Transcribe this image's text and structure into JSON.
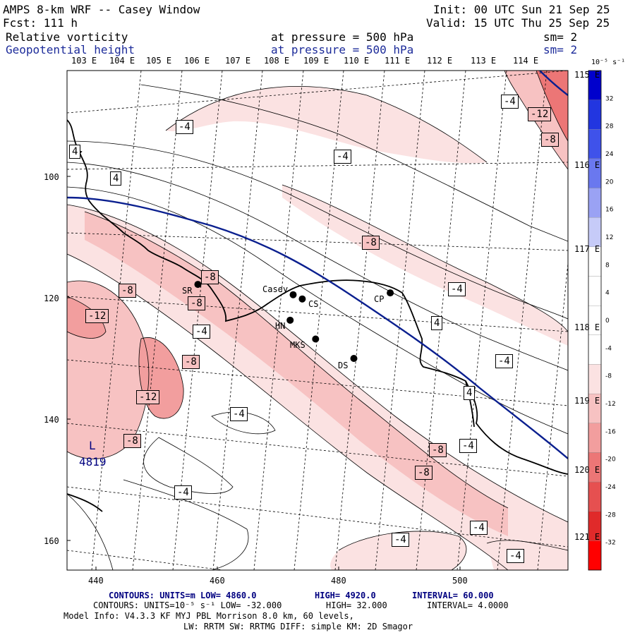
{
  "header": {
    "title": "AMPS 8-km WRF -- Casey Window",
    "init": "Init: 00 UTC Sun 21 Sep 25",
    "fcst": "Fcst:  111 h",
    "valid": "Valid: 15 UTC Thu 25 Sep 25",
    "field1": {
      "name": "Relative vorticity",
      "level": "at pressure =  500 hPa",
      "sm": "sm= 2"
    },
    "field2": {
      "name": "Geopotential height",
      "level": "at pressure =  500 hPa",
      "sm": "sm= 2"
    }
  },
  "lon_labels": [
    "103 E",
    "104 E",
    "105 E",
    "106 E",
    "107 E",
    "108 E",
    "109 E",
    "110 E",
    "111 E",
    "112 E",
    "113 E",
    "114 E"
  ],
  "right_lon_labels": [
    "115 E",
    "116 E",
    "117 E",
    "118 E",
    "119 E",
    "120 E",
    "121 E"
  ],
  "grid_x_labels": [
    "440",
    "460",
    "480",
    "500"
  ],
  "grid_y_labels": [
    "100",
    "120",
    "140",
    "160"
  ],
  "colorbar": {
    "unit": "10⁻⁵ s⁻¹",
    "ticks": [
      "32",
      "28",
      "24",
      "20",
      "16",
      "12",
      "8",
      "4",
      "0",
      "-4",
      "-8",
      "-12",
      "-16",
      "-20",
      "-24",
      "-28",
      "-32"
    ],
    "colors": [
      "#0000cc",
      "#2236e0",
      "#3f52ea",
      "#6a78ef",
      "#9aa2f4",
      "#c6cbf8",
      "#ffffff",
      "#ffffff",
      "#ffffff",
      "#ffffff",
      "#fbe2e2",
      "#f7c2c2",
      "#f29e9e",
      "#ec7676",
      "#e65050",
      "#e02a2a",
      "#ff0000"
    ]
  },
  "contour_labels": [
    "-4",
    "4",
    "-4",
    "-12",
    "-8",
    "-4",
    "4",
    "-8",
    "-8",
    "-4",
    "-8",
    "-12",
    "-8",
    "-4",
    "4",
    "-8",
    "-4",
    "-12",
    "-4",
    "-8",
    "-4",
    "-8",
    "4",
    "-4",
    "-8",
    "-4",
    "-4",
    "-4"
  ],
  "height_low": {
    "symbol": "L",
    "value": "4819"
  },
  "stations": [
    {
      "name": "SR",
      "x": 456.8,
      "y": 117.8
    },
    {
      "name": "Casey",
      "x": 472.5,
      "y": 119.5
    },
    {
      "name": "CS",
      "x": 474.0,
      "y": 120.2
    },
    {
      "name": "CP",
      "x": 488.5,
      "y": 119.2
    },
    {
      "name": "HN",
      "x": 472.0,
      "y": 123.7
    },
    {
      "name": "MKS",
      "x": 476.2,
      "y": 126.8
    },
    {
      "name": "DS",
      "x": 482.5,
      "y": 130.0
    }
  ],
  "footer": {
    "line1_contours": "CONTOURS:  UNITS=m  LOW=  4860.0",
    "line1_high": "HIGH=  4920.0",
    "line1_interval": "INTERVAL=   60.000",
    "line2_contours": "CONTOURS:  UNITS=10⁻⁵ s⁻¹  LOW=  -32.000",
    "line2_high": "HIGH=  32.000",
    "line2_interval": "INTERVAL=   4.0000",
    "line3": "Model Info: V4.3.3   KF      MYJ PBL  Morrison            8.0 km,  60 levels,",
    "line4": "LW: RRTM SW: RRTMG   DIFF: simple KM: 2D Smagor"
  }
}
